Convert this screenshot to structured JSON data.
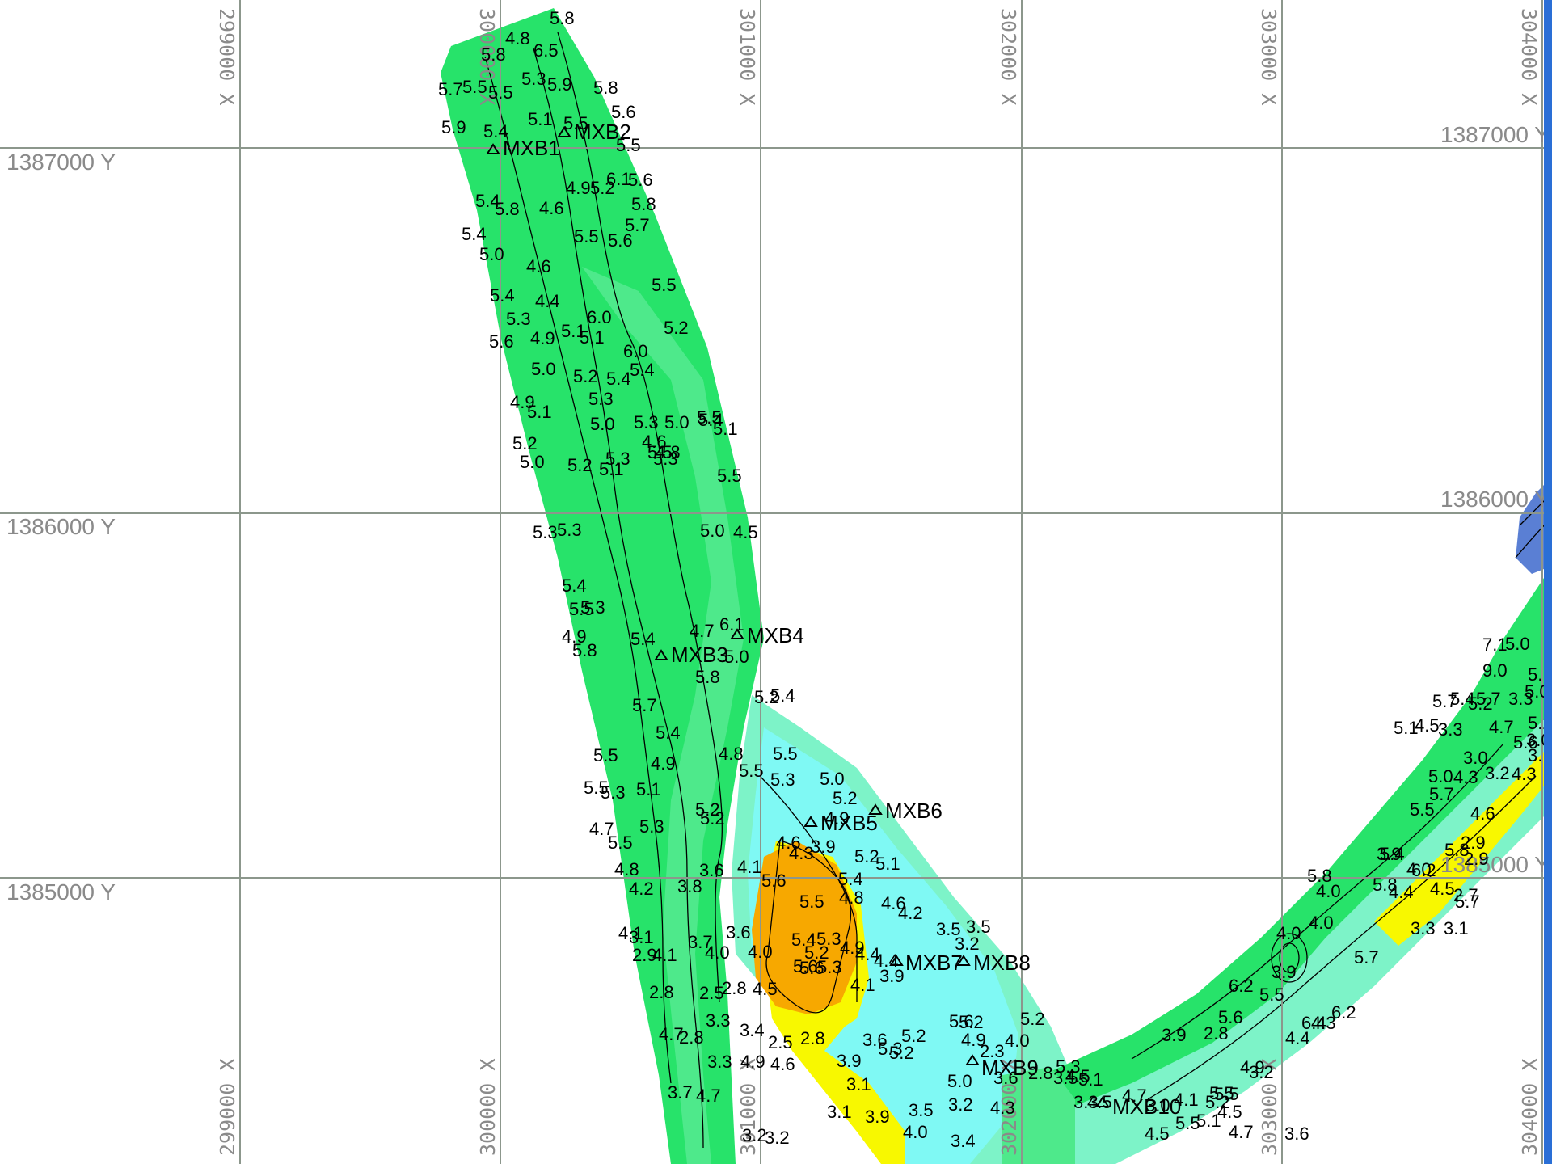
{
  "colors": {
    "green_bright": "#27e36a",
    "green_light": "#5cf2a0",
    "aqua": "#7df3c8",
    "cyan": "#7ff9f4",
    "yellow": "#f8f800",
    "orange": "#f7a800",
    "blue": "#5a7fd4",
    "grid": "#8c978c",
    "edge": "#2a6fd6"
  },
  "x_axis": {
    "top_labels": [
      "299000 X",
      "300000 X",
      "301000 X",
      "302000 X",
      "303000 X",
      "304000 X"
    ],
    "bottom_labels": [
      "299000 X",
      "300000 X",
      "301000 X",
      "302000 X",
      "303000 X",
      "304000 X"
    ]
  },
  "y_axis": {
    "left_labels": [
      "1387000 Y",
      "1386000 Y",
      "1385000 Y"
    ],
    "right_labels": [
      "1387000 Y",
      "1386000 Y",
      "1385000 Y"
    ]
  },
  "wells": [
    "MXB1",
    "MXB2",
    "MXB3",
    "MXB4",
    "MXB5",
    "MXB6",
    "MXB7",
    "MXB8",
    "MXB9",
    "MXB10"
  ],
  "contour_labels": [
    "5.8",
    "4.8",
    "6.5",
    "5.8",
    "5.7",
    "5.5",
    "5.5",
    "5.3",
    "5.9",
    "5.8",
    "5.6",
    "5.9",
    "5.4",
    "5.1",
    "5.5",
    "5.5",
    "6.1",
    "5.6",
    "5.4",
    "5.8",
    "4.6",
    "4.9",
    "5.2",
    "5.8",
    "5.4",
    "5.0",
    "4.6",
    "5.5",
    "5.6",
    "5.7",
    "5.4",
    "5.3",
    "4.4",
    "5.1",
    "6.0",
    "5.5",
    "5.6",
    "4.9",
    "5.1",
    "5.2",
    "6.0",
    "5.4",
    "5.2",
    "5.0",
    "5.0",
    "5.3",
    "5.3",
    "5.4",
    "5.0",
    "5.1",
    "4.9",
    "5.1",
    "5.3",
    "5.3",
    "5.5",
    "4.6",
    "5.2",
    "5.1",
    "4.8",
    "5.5",
    "5.4",
    "5.2",
    "5.0",
    "5.5",
    "5.3",
    "5.3",
    "5.4",
    "5.0",
    "4.5",
    "5.5",
    "5.3",
    "4.9",
    "5.8",
    "5.4",
    "6.1",
    "4.7",
    "5.8",
    "5.4",
    "5.7",
    "5.5",
    "4.9",
    "5.0",
    "5.2",
    "5.4",
    "5.5",
    "5.3",
    "5.1",
    "5.2",
    "4.8",
    "5.5",
    "5.5",
    "5.3",
    "5.0",
    "5.2",
    "4.9",
    "4.7",
    "5.5",
    "5.3",
    "5.2",
    "4.6",
    "4.3",
    "3.9",
    "5.4",
    "5.2",
    "5.1",
    "4.8",
    "4.2",
    "3.8",
    "3.6",
    "4.1",
    "5.6",
    "5.5",
    "5.2",
    "4.8",
    "4.6",
    "4.2",
    "3.5",
    "3.5",
    "4.1",
    "3.1",
    "3.7",
    "3.6",
    "5.4",
    "5.6",
    "5.3",
    "4.9",
    "4.4",
    "3.2",
    "2.9",
    "4.1",
    "4.0",
    "4.0",
    "5.6",
    "5.3",
    "4.4",
    "3.9",
    "2.8",
    "2.5",
    "2.8",
    "4.5",
    "4.1",
    "5.6",
    "5.2",
    "5.2",
    "4.7",
    "2.8",
    "3.3",
    "3.4",
    "2.5",
    "2.8",
    "3.6",
    "5.2",
    "4.9",
    "4.0",
    "2.3",
    "3.3",
    "4.9",
    "4.6",
    "3.9",
    "5.3",
    "5.2",
    "5.0",
    "3.6",
    "2.8",
    "3.5",
    "3.7",
    "4.7",
    "3.1",
    "3.5",
    "3.2",
    "4.3",
    "5.1",
    "4.5",
    "4.7",
    "3.2",
    "3.2",
    "3.1",
    "3.9",
    "4.0",
    "3.4",
    "5.3",
    "4.5",
    "3.3",
    "3.0",
    "4.1",
    "5.5",
    "5.5",
    "5.2",
    "4.9",
    "3.6",
    "3.2",
    "4.5",
    "4.5",
    "5.5",
    "5.1",
    "4.7",
    "3.9",
    "2.8",
    "5.6",
    "6.2",
    "5.5",
    "4.4",
    "4.3",
    "3.9",
    "4.0",
    "4.0",
    "6.4",
    "6.2",
    "5.7",
    "5.8",
    "4.0",
    "3.3",
    "3.1",
    "5.7",
    "5.8",
    "4.0",
    "3.9",
    "6.2",
    "5.8",
    "5.4",
    "4.4",
    "4.5",
    "2.9",
    "2.7",
    "2.9",
    "5.7",
    "4.6",
    "5.6",
    "4.3",
    "3.1",
    "3.0",
    "5.5",
    "5.0",
    "4.3",
    "3.2",
    "3.0",
    "5.1",
    "4.5",
    "3.3",
    "5.2",
    "4.7",
    "5.0",
    "5.1",
    "5.2",
    "5.7",
    "5.4",
    "5.7",
    "3.3",
    "9.0",
    "7.1",
    "5.0"
  ]
}
